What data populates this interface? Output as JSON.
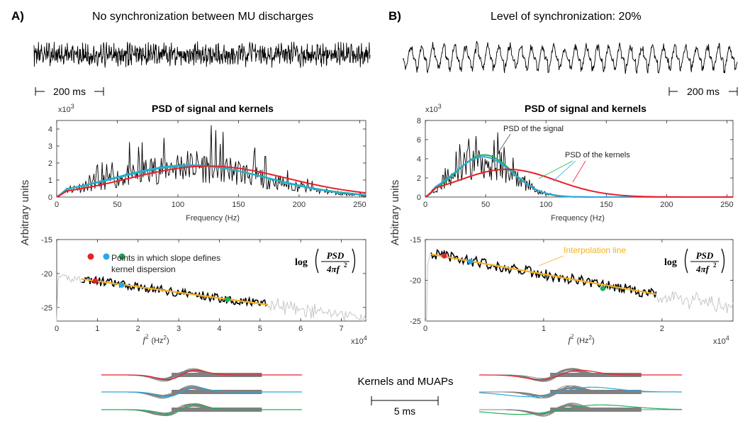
{
  "panels": {
    "a": {
      "letter": "A)",
      "title": "No synchronization between MU discharges",
      "scalebar": "200 ms"
    },
    "b": {
      "letter": "B)",
      "title": "Level of synchronization: 20%",
      "scalebar": "200 ms"
    }
  },
  "psd_title": "PSD of signal and kernels",
  "ylabel": "Arbitrary units",
  "exp3": "x10",
  "exp3_sup": "3",
  "exp4": "x10",
  "exp4_sup": "4",
  "freq_xlabel": "Frequency  (Hz)",
  "f2_xlabel": "f",
  "f2_sup": "2",
  "f2_unit": "(Hz",
  "f2_unit_sup": "2",
  "f2_close": ")",
  "log_formula": {
    "log": "log",
    "num": "PSD",
    "den": "4πf",
    "den_sup": "2"
  },
  "annotations": {
    "points_line1": "Points in which slope defines",
    "points_line2": "kernel dispersion",
    "psd_signal": "PSD of the signal",
    "psd_kernels": "PSD of the kernels",
    "interp": "Interpolation line"
  },
  "kernels_label": "Kernels and MUAPs",
  "scale_5ms": "5 ms",
  "colors": {
    "red": "#e8202a",
    "blue": "#27a9e1",
    "green": "#1db255",
    "cyan": "#1fb4c0",
    "orange": "#f2b21f",
    "grey": "#c7c7c7",
    "muap": "#808080"
  },
  "chart_data": [
    {
      "id": "psd_a",
      "type": "line",
      "title": "PSD of signal and kernels",
      "xlabel": "Frequency  (Hz)",
      "ylabel": "Arbitrary units",
      "y_multiplier": "x10^3",
      "xlim": [
        0,
        255
      ],
      "ylim": [
        0,
        4.5
      ],
      "xticks": [
        0,
        50,
        100,
        150,
        200,
        250
      ],
      "yticks": [
        0,
        1,
        2,
        3,
        4
      ],
      "series": [
        {
          "color": "#000000",
          "kind": "noisy",
          "peak": 1.85,
          "center": 110,
          "width": 60,
          "noise": 0.8
        },
        {
          "color": "#27a9e1",
          "kind": "gauss",
          "peak": 1.88,
          "center": 110,
          "width": 62
        },
        {
          "color": "#1fb4c0",
          "kind": "gauss",
          "peak": 1.84,
          "center": 112,
          "width": 63
        },
        {
          "color": "#e8202a",
          "kind": "gauss",
          "peak": 1.82,
          "center": 125,
          "width": 65
        }
      ]
    },
    {
      "id": "psd_b",
      "type": "line",
      "title": "PSD of signal and kernels",
      "xlabel": "Frequency  (Hz)",
      "ylabel": "Arbitrary units",
      "y_multiplier": "x10^3",
      "xlim": [
        0,
        255
      ],
      "ylim": [
        0,
        8
      ],
      "xticks": [
        0,
        50,
        100,
        150,
        200,
        250
      ],
      "yticks": [
        0,
        2,
        4,
        6,
        8
      ],
      "series": [
        {
          "name": "PSD of the signal",
          "color": "#000000",
          "kind": "noisy",
          "peak": 4.0,
          "center": 48,
          "width": 24,
          "noise": 0.9
        },
        {
          "name": "PSD of the kernels",
          "color": "#1db255",
          "kind": "gauss",
          "peak": 4.4,
          "center": 49,
          "width": 23
        },
        {
          "name": "PSD of the kernels",
          "color": "#27a9e1",
          "kind": "gauss",
          "peak": 4.2,
          "center": 48,
          "width": 24
        },
        {
          "name": "PSD of the kernels",
          "color": "#e8202a",
          "kind": "gauss",
          "peak": 2.9,
          "center": 68,
          "width": 40
        }
      ]
    },
    {
      "id": "log_a",
      "type": "line",
      "xlabel": "f^2 (Hz^2)",
      "x_multiplier": "x10^4",
      "xlim": [
        0,
        7.6
      ],
      "ylim": [
        -27,
        -15
      ],
      "xticks": [
        0,
        1,
        2,
        3,
        4,
        5,
        6,
        7
      ],
      "yticks": [
        -15,
        -20,
        -25
      ],
      "fit": {
        "color": "#f2b21f",
        "x": [
          0.6,
          5.2
        ],
        "y": [
          -20.8,
          -24.6
        ]
      },
      "signal_range": [
        0.6,
        5.2
      ],
      "points": [
        {
          "color": "#e8202a",
          "x": 0.95,
          "y": -21.1
        },
        {
          "color": "#27a9e1",
          "x": 1.6,
          "y": -21.7
        },
        {
          "color": "#1db255",
          "x": 4.2,
          "y": -23.8
        }
      ],
      "point_legend": [
        "#e8202a",
        "#27a9e1",
        "#1db255"
      ]
    },
    {
      "id": "log_b",
      "type": "line",
      "xlabel": "f^2 (Hz^2)",
      "x_multiplier": "x10^4",
      "xlim": [
        0,
        2.6
      ],
      "ylim": [
        -25,
        -15
      ],
      "xticks": [
        0,
        1,
        2
      ],
      "yticks": [
        -15,
        -20,
        -25
      ],
      "fit": {
        "color": "#f2b21f",
        "x": [
          0.05,
          1.95
        ],
        "y": [
          -16.8,
          -21.7
        ]
      },
      "signal_range": [
        0.05,
        1.95
      ],
      "points": [
        {
          "color": "#e8202a",
          "x": 0.16,
          "y": -17.0
        },
        {
          "color": "#27a9e1",
          "x": 0.38,
          "y": -17.7
        },
        {
          "color": "#1db255",
          "x": 1.5,
          "y": -21.0
        }
      ]
    }
  ]
}
